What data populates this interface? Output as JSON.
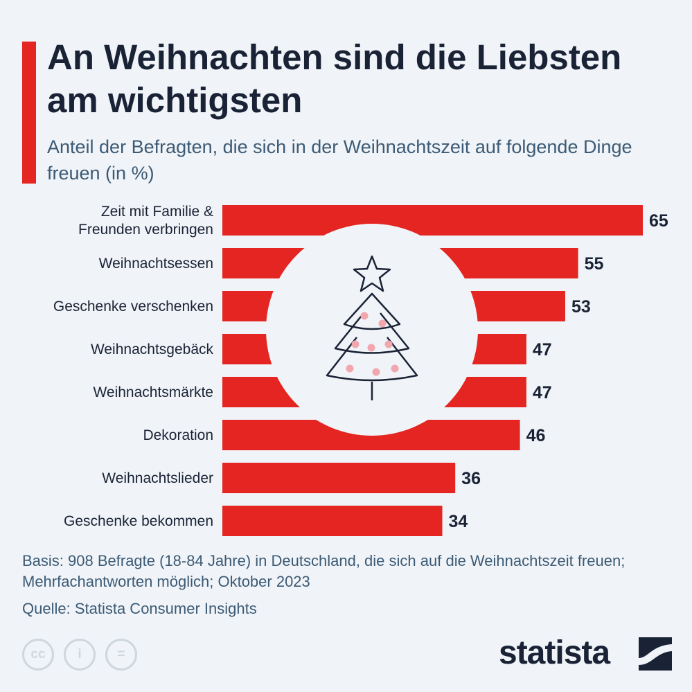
{
  "header": {
    "title": "An Weihnachten sind die Liebsten am wichtigsten",
    "subtitle": "Anteil der Befragten, die sich in der Weihnachtszeit auf folgende Dinge freuen (in %)"
  },
  "chart_data": {
    "type": "bar",
    "orientation": "horizontal",
    "categories": [
      [
        "Zeit mit Familie &",
        "Freunden verbringen"
      ],
      [
        "Weihnachtsessen"
      ],
      [
        "Geschenke verschenken"
      ],
      [
        "Weihnachtsgebäck"
      ],
      [
        "Weihnachtsmärkte"
      ],
      [
        "Dekoration"
      ],
      [
        "Weihnachtslieder"
      ],
      [
        "Geschenke bekommen"
      ]
    ],
    "values": [
      65,
      55,
      53,
      47,
      47,
      46,
      36,
      34
    ],
    "xlim": [
      0,
      65
    ],
    "grid": false,
    "bar_color": "#e52521",
    "icon": "christmas-tree-icon"
  },
  "footer": {
    "note": "Basis: 908 Befragte (18-84 Jahre) in Deutschland, die sich auf die Weihnachtszeit freuen; Mehrfachantworten möglich; Oktober 2023",
    "source": "Quelle: Statista Consumer Insights",
    "license_icons": [
      "cc-icon",
      "by-icon",
      "nd-icon"
    ],
    "license_glyphs": [
      "cc",
      "i",
      "="
    ],
    "brand": "statista"
  }
}
